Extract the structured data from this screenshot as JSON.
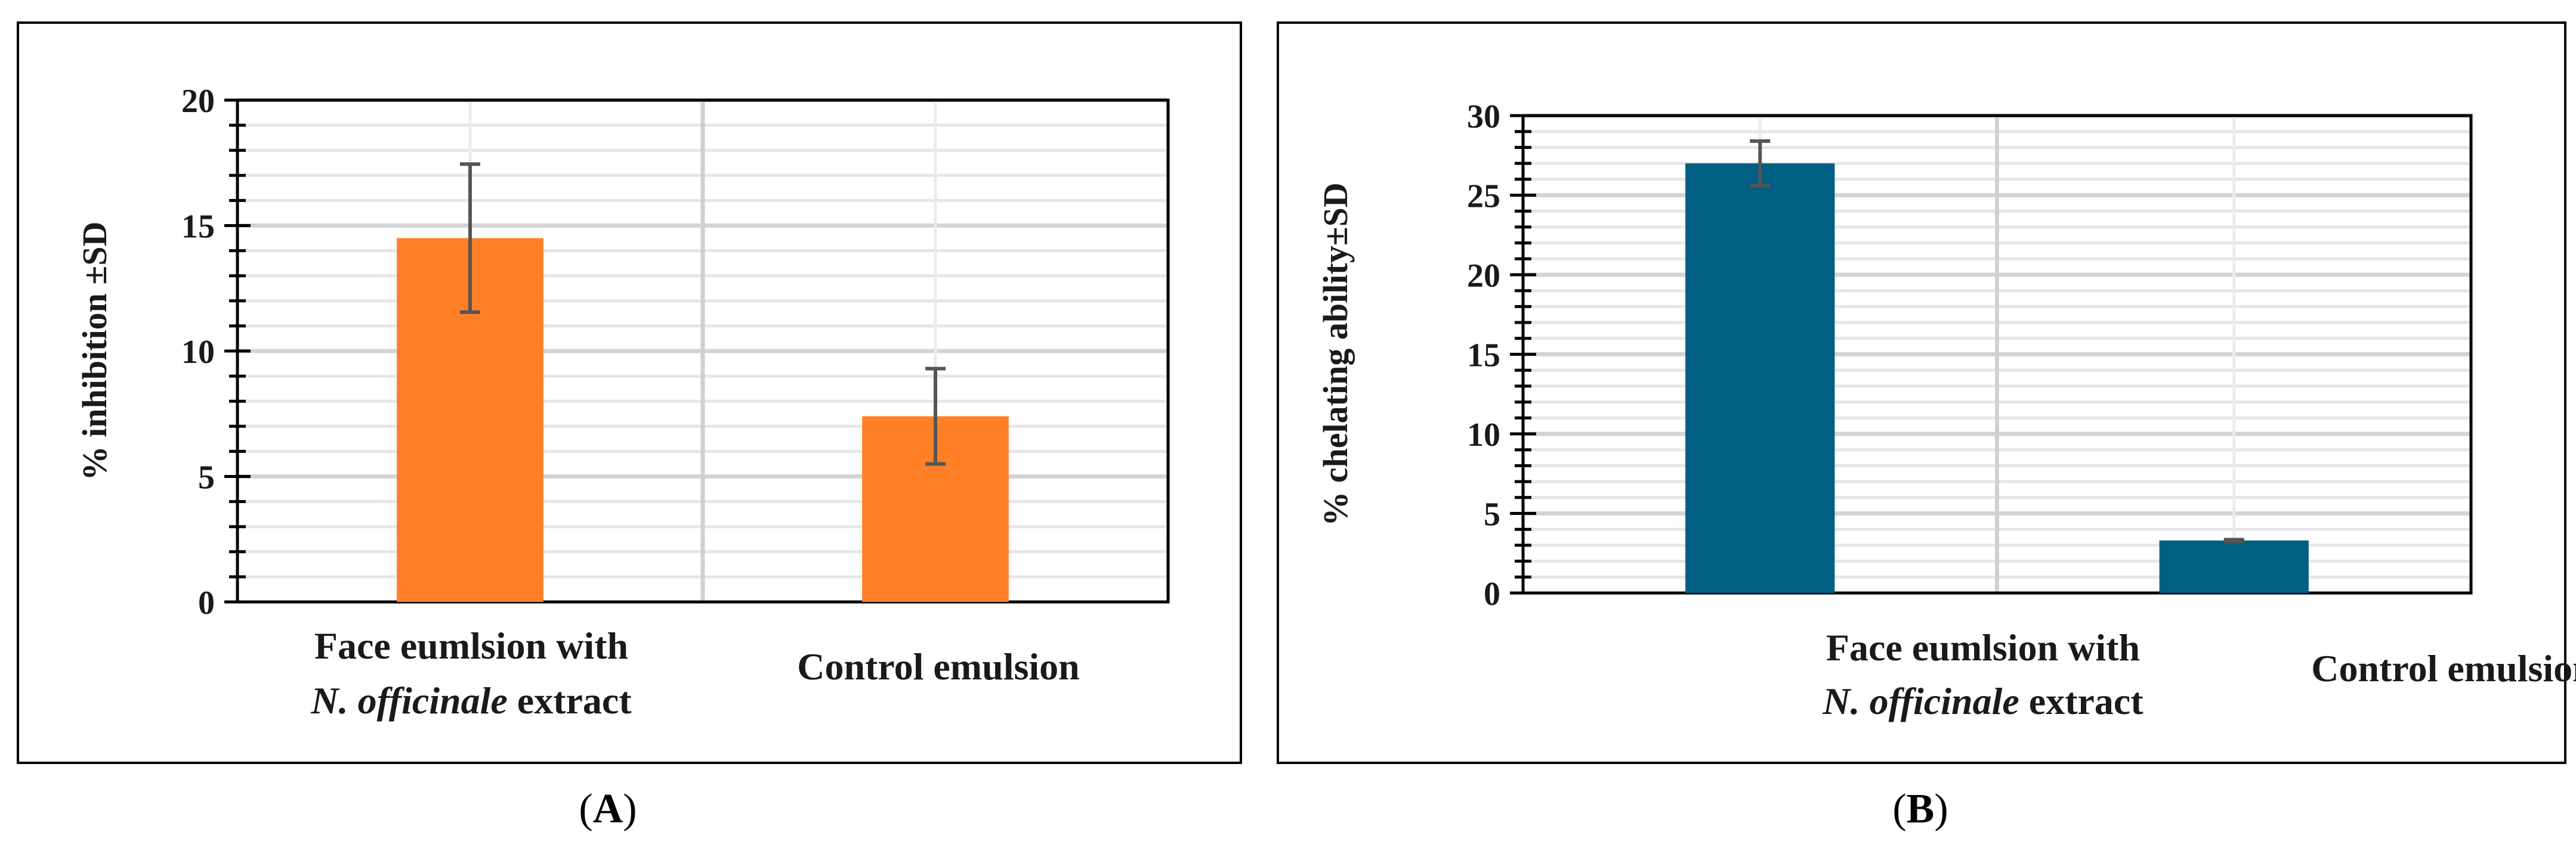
{
  "chart_data": [
    {
      "type": "bar",
      "panel_label": "A",
      "categories": [
        {
          "line1": "Face eumlsion with",
          "line2_italic": "N. officinale",
          "line2_rest": " extract"
        },
        {
          "line1": "Control emulsion",
          "line2_italic": "",
          "line2_rest": ""
        }
      ],
      "values": [
        14.5,
        7.4
      ],
      "errors": [
        2.95,
        1.9
      ],
      "ylabel": "% inhibition ±SD",
      "ylim": [
        0,
        20
      ],
      "yticks": [
        0,
        5,
        10,
        15,
        20
      ],
      "minor_tick_step": 1,
      "grid": true,
      "bar_color": "#FF7F27"
    },
    {
      "type": "bar",
      "panel_label": "B",
      "categories": [
        {
          "line1": "Face eumlsion with",
          "line2_italic": "N. officinale",
          "line2_rest": " extract"
        },
        {
          "line1": "Control emulsion",
          "line2_italic": "",
          "line2_rest": ""
        }
      ],
      "values": [
        27.0,
        3.3
      ],
      "errors": [
        1.4,
        0.05
      ],
      "ylabel": "% chelating ability±SD",
      "ylim": [
        0,
        30
      ],
      "yticks": [
        0,
        5,
        10,
        15,
        20,
        25,
        30
      ],
      "minor_tick_step": 1,
      "grid": true,
      "bar_color": "#005F83"
    }
  ]
}
